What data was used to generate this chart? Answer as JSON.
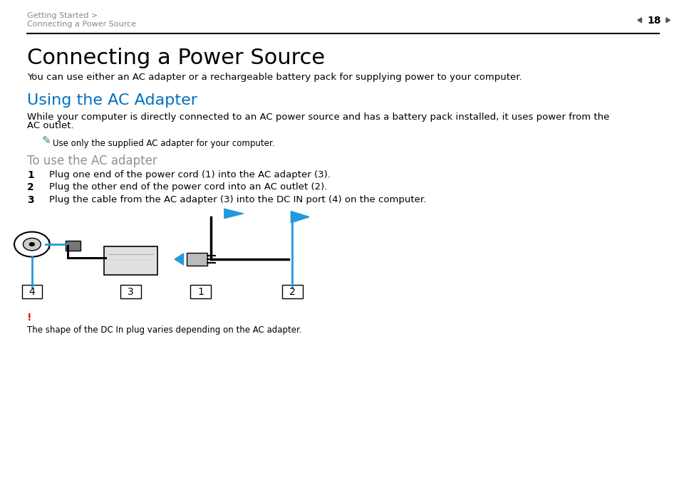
{
  "bg_color": "#ffffff",
  "header_breadcrumb_line1": "Getting Started >",
  "header_breadcrumb_line2": "Connecting a Power Source",
  "header_page": "18",
  "main_title": "Connecting a Power Source",
  "main_title_size": 22,
  "intro_text": "You can use either an AC adapter or a rechargeable battery pack for supplying power to your computer.",
  "section_title": "Using the AC Adapter",
  "section_title_color": "#0070c0",
  "section_title_size": 16,
  "body_text_line1": "While your computer is directly connected to an AC power source and has a battery pack installed, it uses power from the",
  "body_text_line2": "AC outlet.",
  "note_text": "Use only the supplied AC adapter for your computer.",
  "subheading": "To use the AC adapter",
  "subheading_color": "#909090",
  "steps": [
    "Plug one end of the power cord (1) into the AC adapter (3).",
    "Plug the other end of the power cord into an AC outlet (2).",
    "Plug the cable from the AC adapter (3) into the DC IN port (4) on the computer."
  ],
  "warning_text": "The shape of the DC In plug varies depending on the AC adapter.",
  "warning_color": "#ff0000",
  "text_color": "#000000",
  "arrow_color": "#2299dd",
  "diagram_line_color": "#000000"
}
